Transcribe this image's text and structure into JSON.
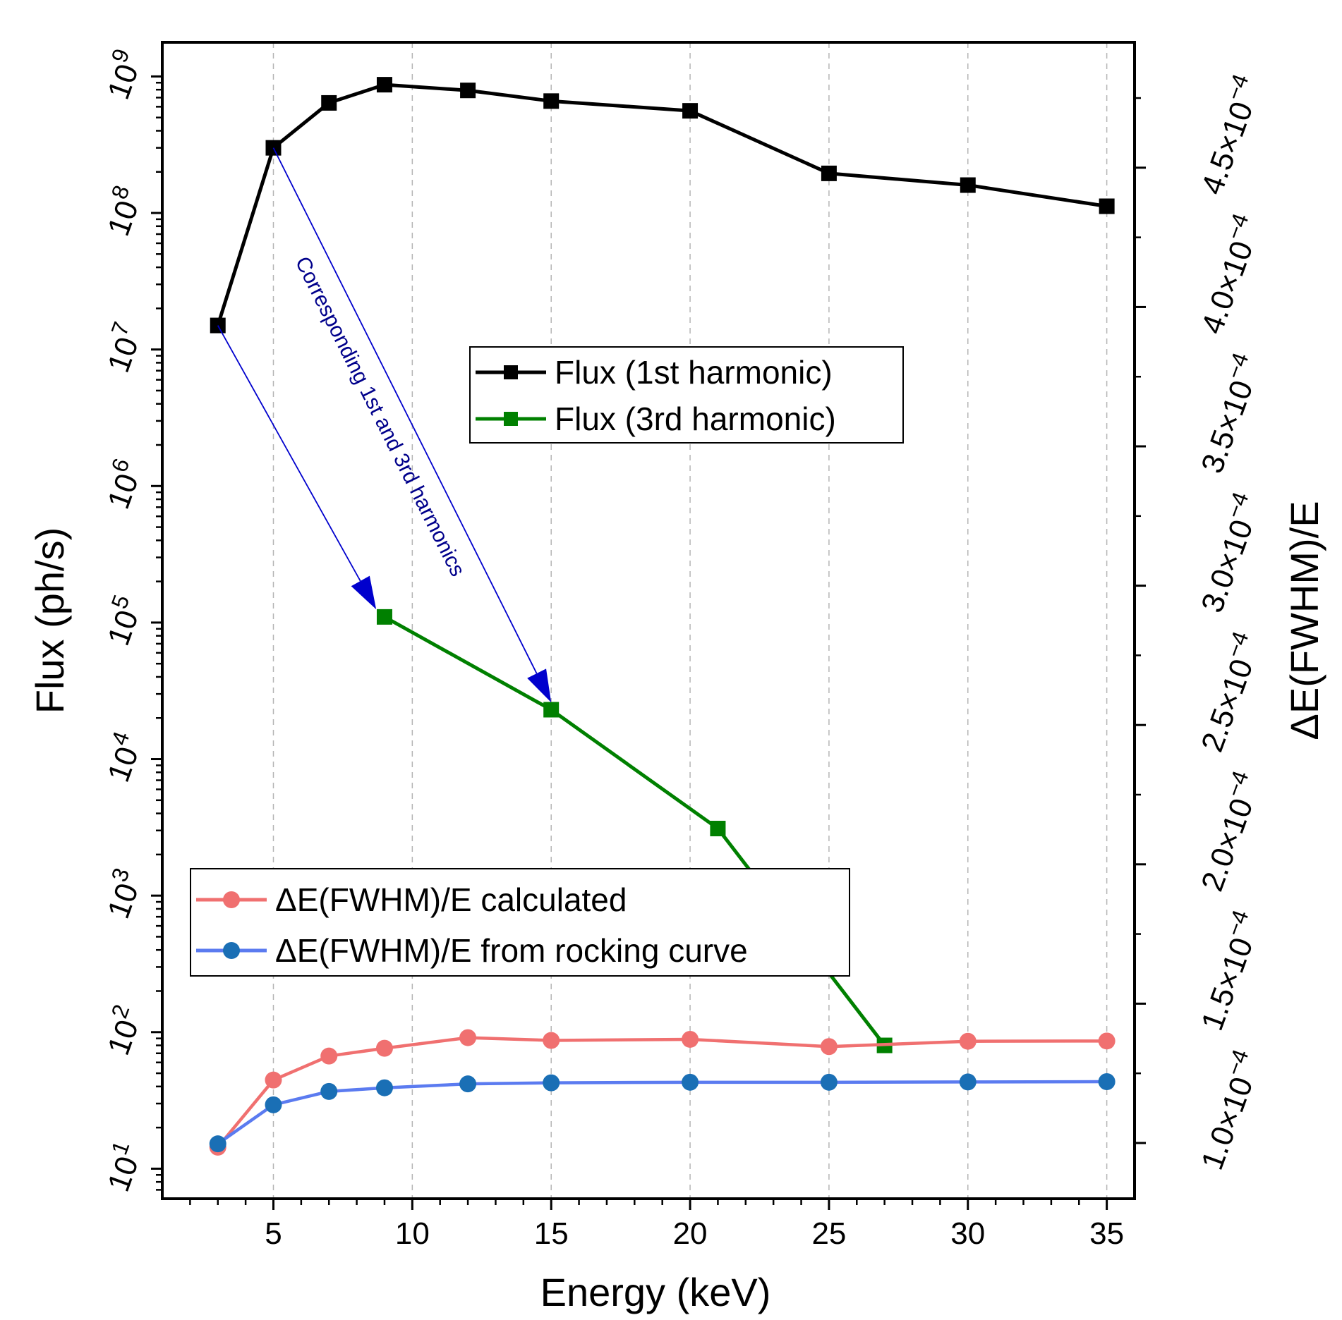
{
  "chart_data": {
    "type": "line",
    "xlabel": "Energy (keV)",
    "ylabel_left": "Flux (ph/s)",
    "ylabel_right": "ΔE(FWHM)/E",
    "xlim": [
      1.0,
      36.0
    ],
    "ylim_left_log10": [
      0.78,
      9.25
    ],
    "ylim_right": [
      8e-05,
      0.000495
    ],
    "x_ticks": [
      5,
      10,
      15,
      20,
      25,
      30,
      35
    ],
    "x_tick_labels": [
      "5",
      "10",
      "15",
      "20",
      "25",
      "30",
      "35"
    ],
    "y_left_ticks": [
      {
        "base": "10",
        "exp": "1"
      },
      {
        "base": "10",
        "exp": "2"
      },
      {
        "base": "10",
        "exp": "3"
      },
      {
        "base": "10",
        "exp": "4"
      },
      {
        "base": "10",
        "exp": "5"
      },
      {
        "base": "10",
        "exp": "6"
      },
      {
        "base": "10",
        "exp": "7"
      },
      {
        "base": "10",
        "exp": "8"
      },
      {
        "base": "10",
        "exp": "9"
      }
    ],
    "y_right_ticks": [
      {
        "value": 0.0001,
        "mantissa": "1.0",
        "times": "×10",
        "exp": "-4"
      },
      {
        "value": 0.00015,
        "mantissa": "1.5",
        "times": "×10",
        "exp": "-4"
      },
      {
        "value": 0.0002,
        "mantissa": "2.0",
        "times": "×10",
        "exp": "-4"
      },
      {
        "value": 0.00025,
        "mantissa": "2.5",
        "times": "×10",
        "exp": "-4"
      },
      {
        "value": 0.0003,
        "mantissa": "3.0",
        "times": "×10",
        "exp": "-4"
      },
      {
        "value": 0.00035,
        "mantissa": "3.5",
        "times": "×10",
        "exp": "-4"
      },
      {
        "value": 0.0004,
        "mantissa": "4.0",
        "times": "×10",
        "exp": "-4"
      },
      {
        "value": 0.00045,
        "mantissa": "4.5",
        "times": "×10",
        "exp": "-4"
      }
    ],
    "grid": "vertical dashed at major x ticks",
    "series": [
      {
        "name": "Flux (1st harmonic)",
        "axis": "left",
        "color": "#000000",
        "marker": "square",
        "x": [
          3,
          5,
          7,
          9,
          12,
          15,
          20,
          25,
          30,
          35
        ],
        "y": [
          15000000.0,
          300000000.0,
          640000000.0,
          870000000.0,
          790000000.0,
          660000000.0,
          560000000.0,
          195000000.0,
          160000000.0,
          112000000.0
        ]
      },
      {
        "name": "Flux (3rd harmonic)",
        "axis": "left",
        "color": "#008000",
        "marker": "square",
        "x": [
          9,
          15,
          21,
          27
        ],
        "y": [
          110000.0,
          23000.0,
          3100.0,
          80.0
        ]
      },
      {
        "name": "ΔE(FWHM)/E calculated",
        "axis": "right",
        "color": "#f07070",
        "marker": "circle",
        "x": [
          3,
          5,
          7,
          9,
          12,
          15,
          20,
          25,
          30,
          35
        ],
        "y": [
          9.85e-05,
          0.0001226,
          0.0001312,
          0.000134,
          0.0001378,
          0.0001368,
          0.0001372,
          0.0001346,
          0.0001365,
          0.0001366
        ]
      },
      {
        "name": "ΔE(FWHM)/E from rocking curve",
        "axis": "right",
        "color": "#5b7bf0",
        "marker_color": "#1a6fb5",
        "marker": "circle",
        "x": [
          3,
          5,
          7,
          9,
          12,
          15,
          20,
          25,
          30,
          35
        ],
        "y": [
          9.97e-05,
          0.0001137,
          0.0001185,
          0.0001198,
          0.0001212,
          0.0001216,
          0.0001218,
          0.0001218,
          0.0001219,
          0.000122
        ]
      }
    ],
    "annotations": [
      {
        "text": "Corresponding 1st and 3rd harmonics",
        "color": "#00008b",
        "arrows": [
          {
            "from": [
              3,
              15000000.0
            ],
            "to": [
              8.7,
              125000.0
            ]
          },
          {
            "from": [
              5,
              300000000.0
            ],
            "to": [
              15,
              26000.0
            ]
          }
        ]
      }
    ],
    "legends": [
      {
        "location": "upper-middle",
        "entries": [
          "Flux (1st harmonic)",
          "Flux (3rd harmonic)"
        ]
      },
      {
        "location": "lower-left",
        "entries": [
          "ΔE(FWHM)/E calculated",
          "ΔE(FWHM)/E from rocking curve"
        ]
      }
    ]
  }
}
